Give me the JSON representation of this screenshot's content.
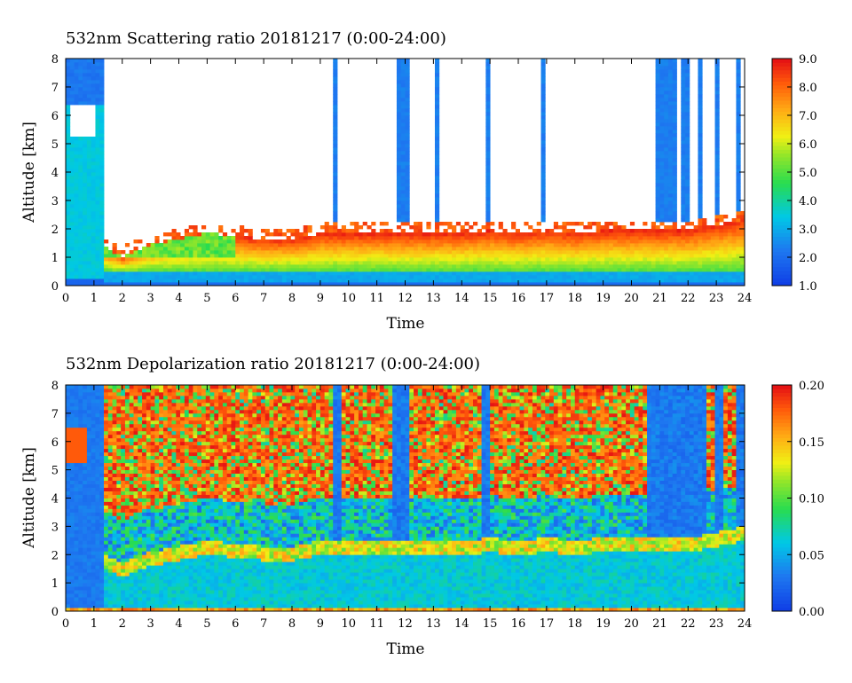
{
  "chart_data": [
    {
      "type": "heatmap",
      "title": "532nm Scattering ratio  20181217 (0:00-24:00)",
      "xlabel": "Time",
      "ylabel": "Altitude [km]",
      "xlim": [
        0,
        24
      ],
      "ylim": [
        0,
        8
      ],
      "x_ticks": [
        "0",
        "1",
        "2",
        "3",
        "4",
        "5",
        "6",
        "7",
        "8",
        "9",
        "10",
        "11",
        "12",
        "13",
        "14",
        "15",
        "16",
        "17",
        "18",
        "19",
        "20",
        "21",
        "22",
        "23",
        "24"
      ],
      "y_ticks": [
        "0",
        "1",
        "2",
        "3",
        "4",
        "5",
        "6",
        "7",
        "8"
      ],
      "colorbar": {
        "range": [
          1.0,
          9.0
        ],
        "ticks": [
          "1.0",
          "2.0",
          "3.0",
          "4.0",
          "5.0",
          "6.0",
          "7.0",
          "8.0",
          "9.0"
        ]
      },
      "cloud_base_km": [
        {
          "t": 0,
          "km": 0.9
        },
        {
          "t": 1.4,
          "km": 1.7
        },
        {
          "t": 2,
          "km": 1.4
        },
        {
          "t": 3,
          "km": 1.8
        },
        {
          "t": 4,
          "km": 2.0
        },
        {
          "t": 5,
          "km": 2.2
        },
        {
          "t": 6,
          "km": 2.1
        },
        {
          "t": 7,
          "km": 2.0
        },
        {
          "t": 8,
          "km": 2.0
        },
        {
          "t": 9,
          "km": 2.2
        },
        {
          "t": 10,
          "km": 2.2
        },
        {
          "t": 11,
          "km": 2.2
        },
        {
          "t": 12,
          "km": 2.2
        },
        {
          "t": 13,
          "km": 2.2
        },
        {
          "t": 14,
          "km": 2.2
        },
        {
          "t": 15,
          "km": 2.3
        },
        {
          "t": 16,
          "km": 2.2
        },
        {
          "t": 17,
          "km": 2.3
        },
        {
          "t": 18,
          "km": 2.2
        },
        {
          "t": 19,
          "km": 2.3
        },
        {
          "t": 20,
          "km": 2.3
        },
        {
          "t": 21,
          "km": 2.3
        },
        {
          "t": 22,
          "km": 2.3
        },
        {
          "t": 23,
          "km": 2.5
        },
        {
          "t": 24,
          "km": 2.7
        }
      ],
      "high_cloud_columns_hours": [
        [
          9.45,
          9.65
        ],
        [
          11.7,
          12.1
        ],
        [
          13.1,
          13.25
        ],
        [
          14.8,
          15.0
        ],
        [
          16.85,
          16.95
        ],
        [
          20.8,
          21.6
        ],
        [
          21.75,
          22.0
        ],
        [
          22.3,
          22.55
        ],
        [
          22.95,
          23.1
        ],
        [
          23.75,
          23.9
        ]
      ]
    },
    {
      "type": "heatmap",
      "title": "532nm Depolarization ratio  20181217 (0:00-24:00)",
      "xlabel": "Time",
      "ylabel": "Altitude [km]",
      "xlim": [
        0,
        24
      ],
      "ylim": [
        0,
        8
      ],
      "x_ticks": [
        "0",
        "1",
        "2",
        "3",
        "4",
        "5",
        "6",
        "7",
        "8",
        "9",
        "10",
        "11",
        "12",
        "13",
        "14",
        "15",
        "16",
        "17",
        "18",
        "19",
        "20",
        "21",
        "22",
        "23",
        "24"
      ],
      "y_ticks": [
        "0",
        "1",
        "2",
        "3",
        "4",
        "5",
        "6",
        "7",
        "8"
      ],
      "colorbar": {
        "range": [
          0.0,
          0.2
        ],
        "ticks": [
          "0.00",
          "0.05",
          "0.10",
          "0.15",
          "0.20"
        ]
      }
    }
  ]
}
